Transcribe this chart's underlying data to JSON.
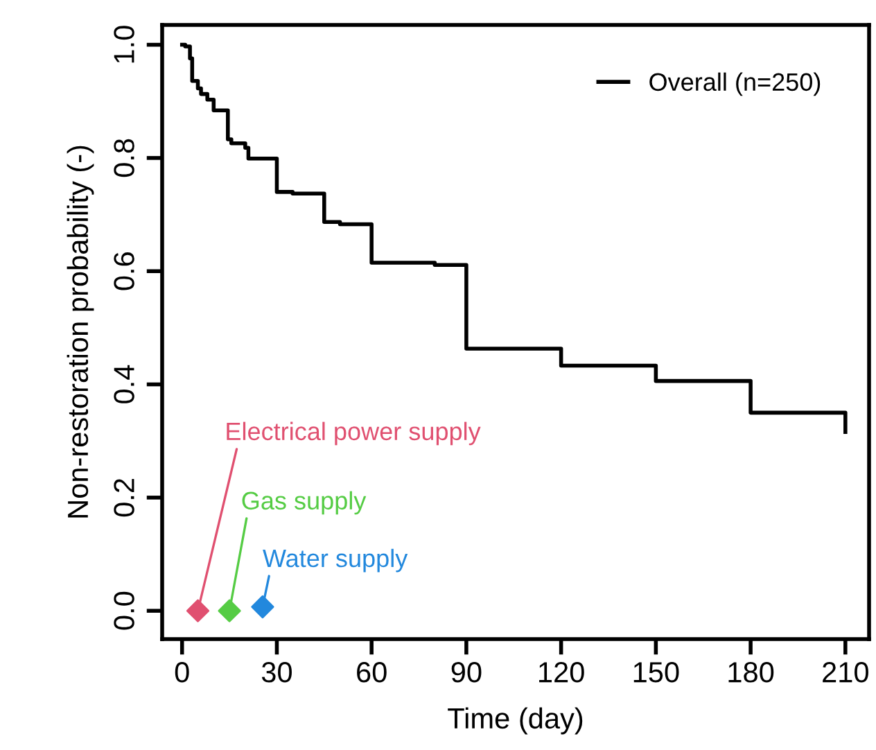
{
  "chart_data": {
    "type": "step",
    "xlabel": "Time (day)",
    "ylabel": "Non-restoration probability (-)",
    "xlim": [
      -6.3,
      217.5
    ],
    "ylim": [
      -0.05,
      1.035
    ],
    "xticks": [
      0,
      30,
      60,
      90,
      120,
      150,
      180,
      210
    ],
    "yticks": [
      {
        "value": 0,
        "label": "0.0"
      },
      0.2,
      0.4,
      0.6,
      0.8,
      {
        "value": 1,
        "label": "1.0"
      }
    ],
    "grid": false,
    "legend": "top right",
    "series": [
      {
        "name": "Overall (n=250)",
        "color": "#000000",
        "line_style": "solid",
        "marker": "none",
        "x": [
          0,
          1,
          2.5,
          3.2,
          5,
          6,
          8,
          10,
          14.5,
          15.6,
          20,
          21,
          30,
          35,
          45,
          50,
          60,
          80,
          90,
          120,
          150,
          180,
          210
        ],
        "values": [
          1.0,
          0.997,
          0.976,
          0.936,
          0.923,
          0.913,
          0.903,
          0.884,
          0.833,
          0.826,
          0.818,
          0.799,
          0.74,
          0.737,
          0.687,
          0.683,
          0.615,
          0.611,
          0.463,
          0.433,
          0.406,
          0.35,
          0.316
        ]
      },
      {
        "name": "Electrical power supply",
        "type": "scatter",
        "marker": "diamond",
        "color": "#e05070",
        "x": [
          5
        ],
        "values": [
          0.0
        ]
      },
      {
        "name": "Gas supply",
        "type": "scatter",
        "marker": "diamond",
        "color": "#55cc44",
        "x": [
          15
        ],
        "values": [
          0.0
        ]
      },
      {
        "name": "Water supply",
        "type": "scatter",
        "marker": "diamond",
        "color": "#2288dd",
        "x": [
          25.5
        ],
        "values": [
          0.007
        ]
      }
    ]
  }
}
